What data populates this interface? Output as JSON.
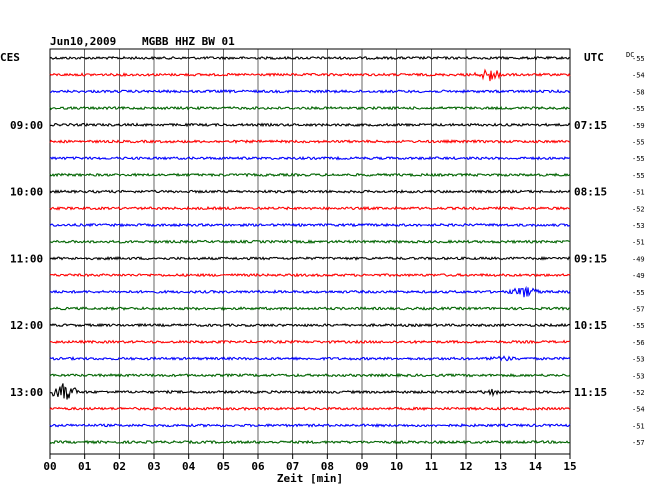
{
  "header": {
    "date": "Jun10,2009",
    "station": "MGBB HHZ BW 01",
    "left_tz": "CES",
    "right_tz": "UTC",
    "dc_label": "DC"
  },
  "chart_data": {
    "type": "line",
    "xlabel": "Zeit [min]",
    "xlim": [
      0,
      15
    ],
    "x_ticks": [
      "00",
      "01",
      "02",
      "03",
      "04",
      "05",
      "06",
      "07",
      "08",
      "09",
      "10",
      "11",
      "12",
      "13",
      "14",
      "15"
    ],
    "trace_colors": [
      "#000000",
      "#ff0000",
      "#0000ff",
      "#006400"
    ],
    "traces_count": 24,
    "left_time_labels": [
      {
        "trace": 4,
        "label": "09:00"
      },
      {
        "trace": 8,
        "label": "10:00"
      },
      {
        "trace": 12,
        "label": "11:00"
      },
      {
        "trace": 16,
        "label": "12:00"
      },
      {
        "trace": 20,
        "label": "13:00"
      }
    ],
    "right_time_labels": [
      {
        "trace": 4,
        "label": "07:15"
      },
      {
        "trace": 8,
        "label": "08:15"
      },
      {
        "trace": 12,
        "label": "09:15"
      },
      {
        "trace": 16,
        "label": "10:15"
      },
      {
        "trace": 20,
        "label": "11:15"
      }
    ],
    "dc_values": [
      "-55",
      "-54",
      "-58",
      "-55",
      "-59",
      "-55",
      "-55",
      "-55",
      "-51",
      "-52",
      "-53",
      "-51",
      "-49",
      "-49",
      "-55",
      "-57",
      "-55",
      "-56",
      "-53",
      "-53",
      "-52",
      "-54",
      "-51",
      "-57"
    ],
    "events": [
      {
        "trace": 1,
        "minute": 12.7,
        "amp": 1.6
      },
      {
        "trace": 14,
        "minute": 13.7,
        "amp": 1.2
      },
      {
        "trace": 18,
        "minute": 13.1,
        "amp": 0.6
      },
      {
        "trace": 20,
        "minute": 0.4,
        "amp": 2.0
      },
      {
        "trace": 20,
        "minute": 12.8,
        "amp": 0.5
      }
    ]
  }
}
